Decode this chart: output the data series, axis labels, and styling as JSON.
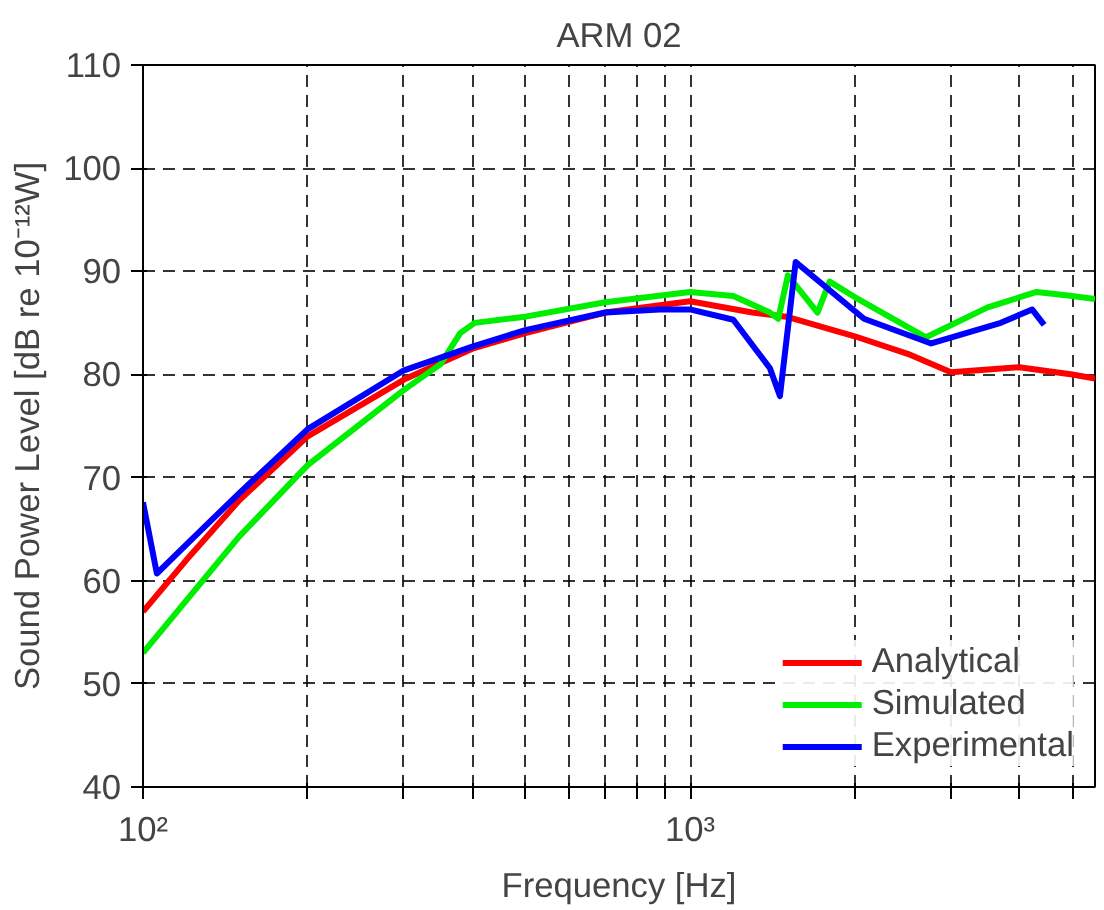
{
  "chart_data": {
    "type": "line",
    "title": "ARM 02",
    "xlabel": "Frequency [Hz]",
    "ylabel": "Sound Power Level [dB re 10⁻¹²W]",
    "log": "x",
    "xlim": [
      100,
      5500
    ],
    "ylim": [
      40,
      110
    ],
    "xticks": [
      {
        "value": 100,
        "label": "10²"
      },
      {
        "value": 200,
        "label": null
      },
      {
        "value": 300,
        "label": null
      },
      {
        "value": 400,
        "label": null
      },
      {
        "value": 500,
        "label": null
      },
      {
        "value": 600,
        "label": null
      },
      {
        "value": 700,
        "label": null
      },
      {
        "value": 800,
        "label": null
      },
      {
        "value": 900,
        "label": null
      },
      {
        "value": 1000,
        "label": "10³"
      },
      {
        "value": 2000,
        "label": null
      },
      {
        "value": 3000,
        "label": null
      },
      {
        "value": 4000,
        "label": null
      },
      {
        "value": 5000,
        "label": null
      }
    ],
    "yticks": [
      40,
      50,
      60,
      70,
      80,
      90,
      100,
      110
    ],
    "grid": true,
    "legend": "bottom right",
    "line_style": "solid",
    "marker": "none",
    "series": [
      {
        "name": "Analytical",
        "color": "#ff0000",
        "x": [
          100,
          120,
          150,
          200,
          300,
          400,
          500,
          700,
          1000,
          1300,
          1500,
          2000,
          2500,
          3000,
          4000,
          5000,
          5500
        ],
        "values": [
          57,
          62,
          67.8,
          74,
          79.5,
          82.5,
          84,
          86,
          87.1,
          86,
          85.6,
          83.7,
          82,
          80.2,
          80.7,
          80,
          79.6
        ]
      },
      {
        "name": "Simulated",
        "color": "#00ee00",
        "x": [
          100,
          150,
          200,
          300,
          350,
          380,
          404,
          500,
          700,
          1000,
          1200,
          1400,
          1450,
          1510,
          1710,
          1800,
          2000,
          2700,
          3500,
          4300,
          5000,
          5500
        ],
        "values": [
          53,
          64.3,
          71.2,
          78.5,
          81,
          84,
          85,
          85.6,
          87,
          88,
          87.6,
          86,
          85.4,
          89.6,
          86,
          89,
          87.5,
          83.6,
          86.5,
          88,
          87.6,
          87.3
        ]
      },
      {
        "name": "Experimental",
        "color": "#0000ff",
        "x": [
          100,
          106,
          120,
          150,
          200,
          300,
          400,
          500,
          700,
          880,
          1000,
          1200,
          1400,
          1460,
          1560,
          2080,
          2760,
          3700,
          4220,
          4440
        ],
        "values": [
          67.6,
          60.7,
          63.5,
          68.5,
          74.7,
          80.4,
          82.7,
          84.3,
          86,
          86.3,
          86.3,
          85.3,
          80.6,
          77.9,
          90.9,
          85.4,
          83,
          85,
          86.3,
          84.8
        ]
      }
    ]
  }
}
